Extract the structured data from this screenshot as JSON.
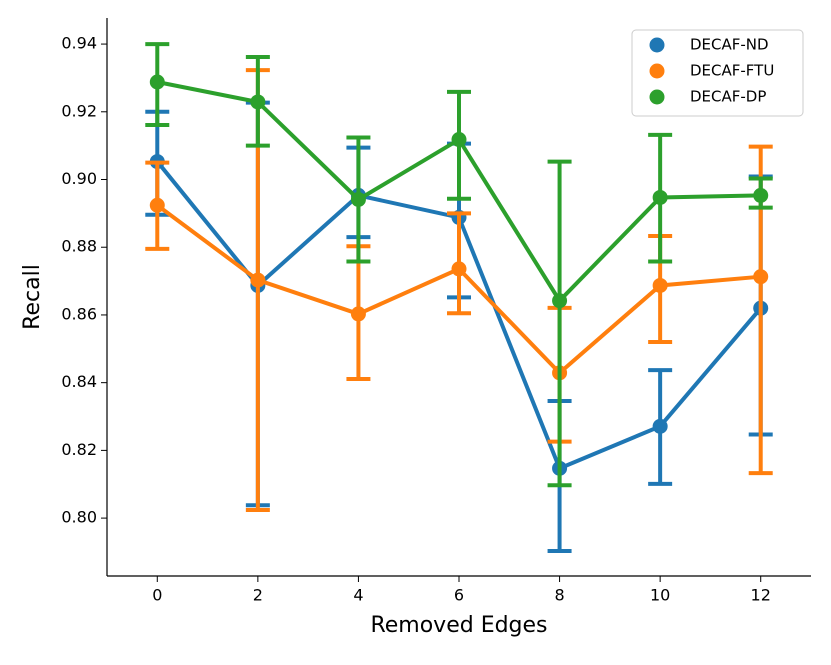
{
  "chart_data": {
    "type": "pointplot",
    "x_label": "Removed Edges",
    "y_label": "Recall",
    "x": [
      0,
      2,
      4,
      6,
      8,
      10,
      12
    ],
    "series": [
      {
        "name": "DECAF-ND",
        "color": "#1f77b4",
        "values": [
          0.9053,
          0.8687,
          0.8953,
          0.8888,
          0.8147,
          0.8271,
          0.862
        ],
        "lower": [
          0.8896,
          0.8038,
          0.883,
          0.8652,
          0.7903,
          0.8101,
          0.8247
        ],
        "upper": [
          0.92,
          0.9227,
          0.9094,
          0.9106,
          0.8346,
          0.8437,
          0.9009
        ]
      },
      {
        "name": "DECAF-FTU",
        "color": "#ff7f0e",
        "values": [
          0.8924,
          0.8703,
          0.8603,
          0.8736,
          0.8429,
          0.8687,
          0.8713
        ],
        "lower": [
          0.8795,
          0.8024,
          0.8411,
          0.8605,
          0.8226,
          0.852,
          0.8133
        ],
        "upper": [
          0.905,
          0.9323,
          0.8803,
          0.89,
          0.8621,
          0.8833,
          0.9097
        ]
      },
      {
        "name": "DECAF-DP",
        "color": "#2ca02c",
        "values": [
          0.9288,
          0.9229,
          0.8941,
          0.9118,
          0.8642,
          0.8947,
          0.8953
        ],
        "lower": [
          0.9161,
          0.91,
          0.8758,
          0.8943,
          0.8097,
          0.8758,
          0.8917
        ],
        "upper": [
          0.94,
          0.9362,
          0.9124,
          0.9259,
          0.9053,
          0.9132,
          0.9003
        ]
      }
    ],
    "xlim": [
      -1,
      13
    ],
    "xticks": [
      0,
      2,
      4,
      6,
      8,
      10,
      12
    ],
    "ylim": [
      0.7829,
      0.9477
    ],
    "yticks": [
      {
        "value": 0.8,
        "label": "0.80"
      },
      0.82,
      0.84,
      0.86,
      0.88,
      {
        "value": 0.9,
        "label": "0.90"
      },
      0.92,
      0.94
    ],
    "legend": "upper right"
  }
}
